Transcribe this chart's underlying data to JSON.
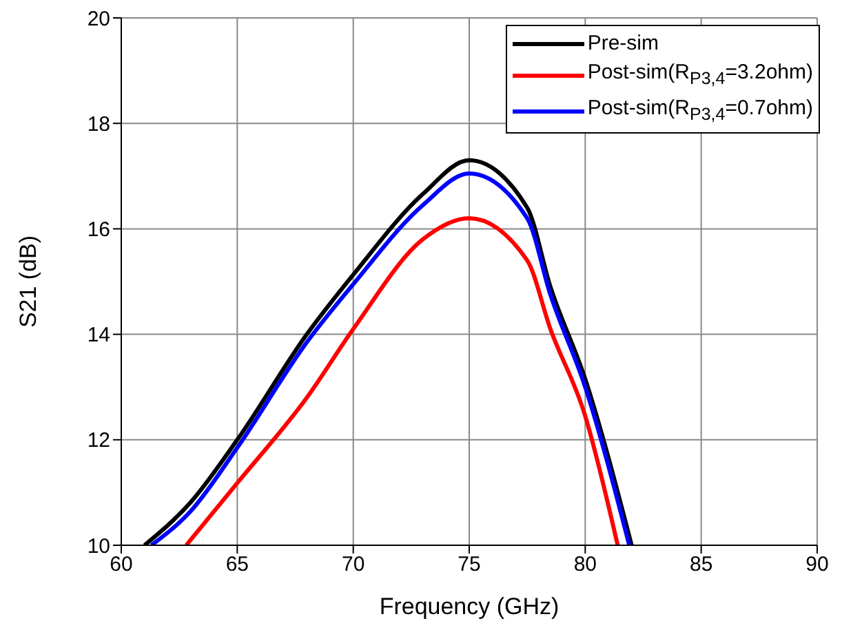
{
  "chart_data": {
    "type": "line",
    "xlabel": "Frequency (GHz)",
    "ylabel": "S21 (dB)",
    "xlim": [
      60,
      90
    ],
    "xticks": [
      60,
      65,
      70,
      75,
      80,
      85,
      90
    ],
    "ylim": [
      10,
      20
    ],
    "yticks": [
      10,
      12,
      14,
      16,
      18,
      20
    ],
    "grid": true,
    "legend": "top right",
    "marker": "none",
    "line_style": "solid",
    "series": [
      {
        "name": "Pre-sim",
        "color": "#000000",
        "x": [
          61,
          63,
          65,
          68,
          70,
          73,
          75,
          77.5,
          78.5,
          80,
          82
        ],
        "values": [
          10,
          10.82,
          12.0,
          14.0,
          15.13,
          16.66,
          17.3,
          16.4,
          14.9,
          13.15,
          10
        ]
      },
      {
        "name": "Post-sim(R$_{P3,4}$=3.2ohm)",
        "color": "#ff0000",
        "x": [
          62.8,
          65,
          68,
          70,
          73,
          75,
          77.5,
          78.5,
          80,
          81.4
        ],
        "values": [
          10,
          11.18,
          12.8,
          14.1,
          15.8,
          16.2,
          15.4,
          14.1,
          12.45,
          10
        ]
      },
      {
        "name": "Post-sim(R$_{P3,4}$=0.7ohm)",
        "color": "#0000ff",
        "x": [
          61.3,
          63,
          65,
          68,
          70,
          73,
          75,
          77.5,
          78.5,
          80,
          81.9
        ],
        "values": [
          10,
          10.65,
          11.85,
          13.85,
          14.95,
          16.45,
          17.05,
          16.2,
          14.75,
          13.0,
          10
        ]
      }
    ]
  }
}
